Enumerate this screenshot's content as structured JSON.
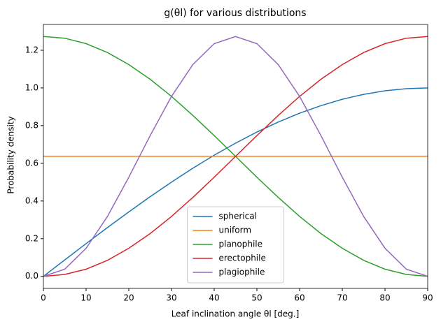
{
  "chart_data": {
    "type": "line",
    "title": "g(θl) for various distributions",
    "x_label": "Leaf inclination angle θl [deg.]",
    "y_label": "Probability density",
    "x": [
      0,
      5,
      10,
      15,
      20,
      25,
      30,
      35,
      40,
      45,
      50,
      55,
      60,
      65,
      70,
      75,
      80,
      85,
      90
    ],
    "series": [
      {
        "name": "spherical",
        "color": "#1f77b4",
        "values": [
          0,
          0.087,
          0.174,
          0.259,
          0.342,
          0.423,
          0.5,
          0.574,
          0.643,
          0.707,
          0.766,
          0.819,
          0.866,
          0.906,
          0.94,
          0.966,
          0.985,
          0.996,
          1
        ]
      },
      {
        "name": "uniform",
        "color": "#ff7f0e",
        "values": [
          0.637,
          0.637,
          0.637,
          0.637,
          0.637,
          0.637,
          0.637,
          0.637,
          0.637,
          0.637,
          0.637,
          0.637,
          0.637,
          0.637,
          0.637,
          0.637,
          0.637,
          0.637,
          0.637
        ]
      },
      {
        "name": "planophile",
        "color": "#2ca02c",
        "values": [
          1.273,
          1.264,
          1.235,
          1.188,
          1.124,
          1.046,
          0.955,
          0.854,
          0.747,
          0.637,
          0.526,
          0.419,
          0.318,
          0.227,
          0.149,
          0.085,
          0.038,
          0.01,
          0
        ]
      },
      {
        "name": "erectophile",
        "color": "#d62728",
        "values": [
          0,
          0.01,
          0.038,
          0.085,
          0.149,
          0.227,
          0.318,
          0.419,
          0.526,
          0.637,
          0.747,
          0.854,
          0.955,
          1.046,
          1.124,
          1.188,
          1.235,
          1.264,
          1.273
        ]
      },
      {
        "name": "plagiophile",
        "color": "#9467bd",
        "values": [
          0,
          0.038,
          0.149,
          0.318,
          0.526,
          0.747,
          0.955,
          1.124,
          1.235,
          1.273,
          1.235,
          1.124,
          0.955,
          0.747,
          0.526,
          0.318,
          0.149,
          0.038,
          0
        ]
      }
    ],
    "xlim": [
      0,
      90
    ],
    "xticks": [
      0,
      10,
      20,
      30,
      40,
      50,
      60,
      70,
      80,
      90
    ],
    "ylim": [
      -0.064,
      1.337
    ],
    "yticks": [
      {
        "value": 0,
        "label": "0.0"
      },
      {
        "value": 0.2,
        "label": "0.2"
      },
      {
        "value": 0.4,
        "label": "0.4"
      },
      {
        "value": 0.6,
        "label": "0.6"
      },
      {
        "value": 0.8,
        "label": "0.8"
      },
      {
        "value": 1,
        "label": "1.0"
      },
      {
        "value": 1.2,
        "label": "1.2"
      }
    ],
    "legend": "lower center"
  }
}
